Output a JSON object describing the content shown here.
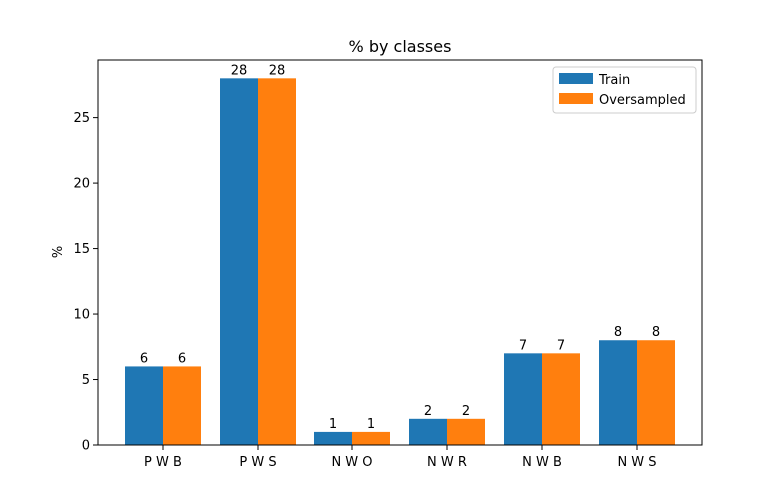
{
  "chart_data": {
    "type": "bar",
    "title": "% by classes",
    "xlabel": "",
    "ylabel": "%",
    "categories": [
      "P W B",
      "P W S",
      "N W O",
      "N W R",
      "N W B",
      "N W S"
    ],
    "series": [
      {
        "name": "Train",
        "color": "#1f77b4",
        "values": [
          6,
          28,
          1,
          2,
          7,
          8
        ]
      },
      {
        "name": "Oversampled",
        "color": "#ff7f0e",
        "values": [
          6,
          28,
          1,
          2,
          7,
          8
        ]
      }
    ],
    "data_labels": [
      [
        "6",
        "28",
        "1",
        "2",
        "7",
        "8"
      ],
      [
        "6",
        "28",
        "1",
        "2",
        "7",
        "8"
      ]
    ],
    "ylim": [
      0,
      29.4
    ],
    "yticks": [
      0,
      5,
      10,
      15,
      20,
      25
    ],
    "grid": false,
    "legend_position": "top-right"
  }
}
